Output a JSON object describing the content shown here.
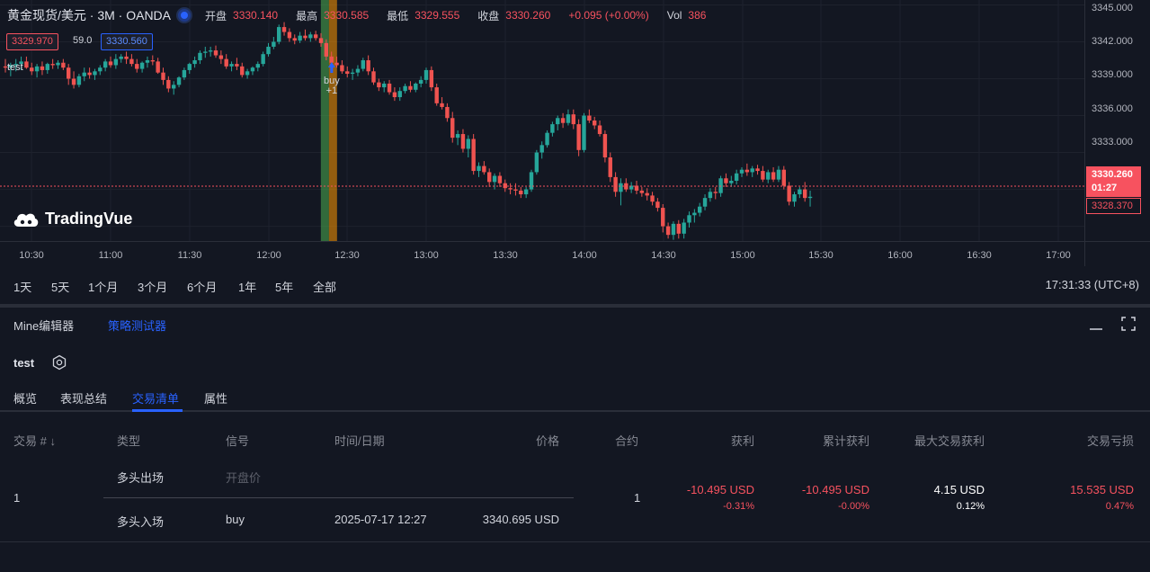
{
  "chart_header": {
    "symbol": "黄金现货/美元 · 3M · OANDA",
    "open_label": "开盘",
    "open": "3330.140",
    "high_label": "最高",
    "high": "3330.585",
    "low_label": "最低",
    "low": "3329.555",
    "close_label": "收盘",
    "close": "3330.260",
    "change": "+0.095 (+0.00%)",
    "vol_label": "Vol",
    "vol": "386"
  },
  "price_boxes": {
    "bid": "3329.970",
    "spread": "59.0",
    "ask": "3330.560"
  },
  "indicator_name": "test",
  "logo_text": "TradingVue",
  "y_axis": [
    "3345.000",
    "3342.000",
    "3339.000",
    "3336.000",
    "3333.000"
  ],
  "last_price": "3330.260",
  "countdown": "01:27",
  "low_marker": "3328.370",
  "x_axis": [
    "10:30",
    "11:00",
    "11:30",
    "12:00",
    "12:30",
    "13:00",
    "13:30",
    "14:00",
    "14:30",
    "15:00",
    "15:30",
    "16:00",
    "16:30",
    "17:00"
  ],
  "signal": {
    "label": "buy",
    "qty": "+1"
  },
  "colors": {
    "up": "#26a69a",
    "down": "#ef5350",
    "accent": "#2962ff",
    "highlight_green": "#4caf50",
    "highlight_orange": "#ff9800"
  },
  "ranges": [
    "1天",
    "5天",
    "1个月",
    "3个月",
    "6个月",
    "1年",
    "5年",
    "全部"
  ],
  "clock": "17:31:33 (UTC+8)",
  "panel_tabs": {
    "editor": "Mine编辑器",
    "tester": "策略测试器"
  },
  "strategy_name": "test",
  "sub_tabs": {
    "overview": "概览",
    "performance": "表现总结",
    "trades": "交易清单",
    "properties": "属性"
  },
  "table": {
    "headers": {
      "trade": "交易 # ↓",
      "type": "类型",
      "signal": "信号",
      "time": "时间/日期",
      "price": "价格",
      "contracts": "合约",
      "profit": "获利",
      "cum_profit": "累计获利",
      "max_runup": "最大交易获利",
      "drawdown": "交易亏损"
    },
    "row": {
      "num": "1",
      "exit_type": "多头出场",
      "exit_signal": "开盘价",
      "entry_type": "多头入场",
      "entry_signal": "buy",
      "entry_time": "2025-07-17 12:27",
      "entry_price": "3340.695 USD",
      "contracts": "1",
      "profit": "-10.495 USD",
      "profit_pct": "-0.31%",
      "cum_profit": "-10.495 USD",
      "cum_profit_pct": "-0.00%",
      "max_runup": "4.15 USD",
      "max_runup_pct": "0.12%",
      "drawdown": "15.535 USD",
      "drawdown_pct": "0.47%"
    }
  },
  "chart_data": {
    "type": "candlestick",
    "series": [
      {
        "name": "",
        "ohlc": [
          [
            3340.0,
            3340.6,
            3339.5,
            3339.9
          ],
          [
            3339.9,
            3340.3,
            3339.2,
            3340.1
          ],
          [
            3340.1,
            3340.6,
            3339.6,
            3340.2
          ],
          [
            3340.2,
            3340.8,
            3339.7,
            3340.4
          ],
          [
            3340.4,
            3340.8,
            3339.8,
            3339.9
          ],
          [
            3339.9,
            3340.3,
            3339.3,
            3339.6
          ],
          [
            3339.6,
            3340.2,
            3339.1,
            3340.0
          ],
          [
            3340.0,
            3340.4,
            3339.3,
            3339.7
          ],
          [
            3339.7,
            3340.3,
            3339.4,
            3340.2
          ],
          [
            3340.2,
            3340.6,
            3339.8,
            3340.1
          ],
          [
            3340.1,
            3340.5,
            3339.8,
            3340.3
          ],
          [
            3340.3,
            3340.6,
            3339.7,
            3339.9
          ],
          [
            3339.9,
            3340.2,
            3338.5,
            3339.0
          ],
          [
            3339.0,
            3339.6,
            3338.2,
            3338.5
          ],
          [
            3338.5,
            3339.4,
            3338.3,
            3339.2
          ],
          [
            3339.2,
            3339.9,
            3338.8,
            3339.5
          ],
          [
            3339.5,
            3339.9,
            3339.0,
            3339.3
          ],
          [
            3339.3,
            3339.8,
            3338.9,
            3339.6
          ],
          [
            3339.6,
            3340.1,
            3339.3,
            3339.9
          ],
          [
            3339.9,
            3340.6,
            3339.6,
            3340.4
          ],
          [
            3340.4,
            3340.8,
            3339.9,
            3340.1
          ],
          [
            3340.1,
            3341.0,
            3339.8,
            3340.6
          ],
          [
            3340.6,
            3341.0,
            3340.3,
            3340.8
          ],
          [
            3340.8,
            3341.2,
            3340.2,
            3340.6
          ],
          [
            3340.6,
            3341.0,
            3340.0,
            3340.2
          ],
          [
            3340.2,
            3340.6,
            3339.5,
            3339.8
          ],
          [
            3339.8,
            3340.4,
            3339.5,
            3340.3
          ],
          [
            3340.3,
            3340.8,
            3339.9,
            3340.5
          ],
          [
            3340.5,
            3340.9,
            3340.1,
            3340.4
          ],
          [
            3340.4,
            3340.7,
            3339.4,
            3339.5
          ],
          [
            3339.5,
            3339.9,
            3338.5,
            3338.9
          ],
          [
            3338.9,
            3339.2,
            3337.9,
            3338.2
          ],
          [
            3338.2,
            3338.8,
            3337.7,
            3338.5
          ],
          [
            3338.5,
            3339.2,
            3338.3,
            3339.1
          ],
          [
            3339.1,
            3339.9,
            3338.9,
            3339.7
          ],
          [
            3339.7,
            3340.3,
            3339.4,
            3340.2
          ],
          [
            3340.2,
            3340.8,
            3339.9,
            3340.5
          ],
          [
            3340.5,
            3341.3,
            3340.2,
            3341.1
          ],
          [
            3341.1,
            3341.6,
            3340.7,
            3341.2
          ],
          [
            3341.2,
            3341.6,
            3340.8,
            3341.3
          ],
          [
            3341.3,
            3341.7,
            3340.7,
            3340.9
          ],
          [
            3340.9,
            3341.3,
            3340.2,
            3340.6
          ],
          [
            3340.6,
            3341.0,
            3339.8,
            3340.0
          ],
          [
            3340.0,
            3340.4,
            3339.6,
            3340.2
          ],
          [
            3340.2,
            3340.7,
            3339.7,
            3340.0
          ],
          [
            3340.0,
            3340.3,
            3339.1,
            3339.3
          ],
          [
            3339.3,
            3339.8,
            3339.0,
            3339.6
          ],
          [
            3339.6,
            3340.0,
            3339.3,
            3339.9
          ],
          [
            3339.9,
            3340.4,
            3339.6,
            3340.2
          ],
          [
            3340.2,
            3341.2,
            3340.0,
            3341.0
          ],
          [
            3341.0,
            3341.9,
            3340.8,
            3341.6
          ],
          [
            3341.6,
            3342.4,
            3341.4,
            3342.0
          ],
          [
            3342.0,
            3343.4,
            3341.8,
            3343.2
          ],
          [
            3343.2,
            3343.6,
            3342.5,
            3342.8
          ],
          [
            3342.8,
            3343.1,
            3342.0,
            3342.3
          ],
          [
            3342.3,
            3342.6,
            3341.8,
            3342.1
          ],
          [
            3342.1,
            3342.8,
            3341.9,
            3342.5
          ],
          [
            3342.5,
            3343.0,
            3342.1,
            3342.3
          ],
          [
            3342.3,
            3342.8,
            3342.0,
            3342.6
          ],
          [
            3342.6,
            3342.9,
            3342.1,
            3342.3
          ],
          [
            3342.3,
            3342.7,
            3341.6,
            3341.9
          ],
          [
            3341.9,
            3342.2,
            3340.5,
            3340.8
          ],
          [
            3340.8,
            3341.2,
            3339.9,
            3340.3
          ],
          [
            3340.3,
            3340.8,
            3339.9,
            3340.1
          ],
          [
            3340.1,
            3340.5,
            3339.4,
            3339.6
          ],
          [
            3339.6,
            3340.0,
            3339.1,
            3339.4
          ],
          [
            3339.4,
            3339.8,
            3338.9,
            3339.5
          ],
          [
            3339.5,
            3340.1,
            3339.2,
            3339.8
          ],
          [
            3339.8,
            3340.7,
            3339.6,
            3340.5
          ],
          [
            3340.5,
            3340.9,
            3339.3,
            3339.6
          ],
          [
            3339.6,
            3339.9,
            3338.5,
            3338.7
          ],
          [
            3338.7,
            3339.0,
            3338.0,
            3338.3
          ],
          [
            3338.3,
            3338.8,
            3337.9,
            3338.6
          ],
          [
            3338.6,
            3338.9,
            3337.7,
            3337.9
          ],
          [
            3337.9,
            3338.3,
            3337.2,
            3337.5
          ],
          [
            3337.5,
            3338.3,
            3337.2,
            3338.0
          ],
          [
            3338.0,
            3338.6,
            3337.8,
            3338.4
          ],
          [
            3338.4,
            3338.8,
            3337.9,
            3338.1
          ],
          [
            3338.1,
            3338.7,
            3337.9,
            3338.6
          ],
          [
            3338.6,
            3339.2,
            3338.3,
            3338.9
          ],
          [
            3338.9,
            3339.9,
            3338.6,
            3339.7
          ],
          [
            3339.7,
            3340.0,
            3338.0,
            3338.3
          ],
          [
            3338.3,
            3338.6,
            3336.8,
            3337.0
          ],
          [
            3337.0,
            3337.5,
            3336.5,
            3336.7
          ],
          [
            3336.7,
            3337.0,
            3335.5,
            3335.8
          ],
          [
            3335.8,
            3336.3,
            3333.8,
            3334.2
          ],
          [
            3334.2,
            3334.8,
            3333.6,
            3334.5
          ],
          [
            3334.5,
            3334.9,
            3333.0,
            3333.3
          ],
          [
            3333.3,
            3334.4,
            3332.6,
            3334.1
          ],
          [
            3334.1,
            3334.5,
            3331.2,
            3331.5
          ],
          [
            3331.5,
            3332.2,
            3331.0,
            3331.9
          ],
          [
            3331.9,
            3332.3,
            3331.2,
            3331.4
          ],
          [
            3331.4,
            3331.7,
            3330.2,
            3330.6
          ],
          [
            3330.6,
            3331.3,
            3330.0,
            3331.1
          ],
          [
            3331.1,
            3331.4,
            3330.2,
            3330.5
          ],
          [
            3330.5,
            3330.8,
            3329.8,
            3330.1
          ],
          [
            3330.1,
            3330.5,
            3329.6,
            3330.0
          ],
          [
            3330.0,
            3330.5,
            3329.5,
            3329.9
          ],
          [
            3329.9,
            3330.2,
            3329.3,
            3329.6
          ],
          [
            3329.6,
            3330.2,
            3329.3,
            3330.0
          ],
          [
            3330.0,
            3331.6,
            3329.8,
            3331.4
          ],
          [
            3331.4,
            3333.2,
            3331.2,
            3333.0
          ],
          [
            3333.0,
            3333.9,
            3332.5,
            3333.6
          ],
          [
            3333.6,
            3334.8,
            3333.4,
            3334.6
          ],
          [
            3334.6,
            3335.5,
            3334.3,
            3335.3
          ],
          [
            3335.3,
            3336.0,
            3334.8,
            3335.8
          ],
          [
            3335.8,
            3336.2,
            3335.0,
            3335.4
          ],
          [
            3335.4,
            3336.5,
            3335.2,
            3336.1
          ],
          [
            3336.1,
            3336.5,
            3334.9,
            3335.3
          ],
          [
            3335.3,
            3335.7,
            3332.7,
            3333.2
          ],
          [
            3333.2,
            3336.2,
            3333.0,
            3336.0
          ],
          [
            3336.0,
            3336.5,
            3335.4,
            3335.6
          ],
          [
            3335.6,
            3335.9,
            3334.9,
            3335.2
          ],
          [
            3335.2,
            3335.6,
            3334.3,
            3334.5
          ],
          [
            3334.5,
            3334.8,
            3332.2,
            3332.6
          ],
          [
            3332.6,
            3333.0,
            3330.6,
            3331.0
          ],
          [
            3331.0,
            3331.4,
            3329.4,
            3329.8
          ],
          [
            3329.8,
            3330.9,
            3328.7,
            3330.5
          ],
          [
            3330.5,
            3330.9,
            3329.8,
            3330.0
          ],
          [
            3330.0,
            3330.6,
            3329.7,
            3330.3
          ],
          [
            3330.3,
            3330.7,
            3329.6,
            3329.9
          ],
          [
            3329.9,
            3330.2,
            3329.4,
            3329.7
          ],
          [
            3329.7,
            3330.1,
            3329.1,
            3329.5
          ],
          [
            3329.5,
            3329.8,
            3328.7,
            3329.0
          ],
          [
            3329.0,
            3329.3,
            3328.2,
            3328.5
          ],
          [
            3328.5,
            3328.8,
            3326.5,
            3327.0
          ],
          [
            3327.0,
            3327.3,
            3326.0,
            3326.3
          ],
          [
            3326.3,
            3327.4,
            3325.9,
            3327.2
          ],
          [
            3327.2,
            3327.5,
            3326.0,
            3326.4
          ],
          [
            3326.4,
            3327.6,
            3326.0,
            3327.3
          ],
          [
            3327.3,
            3328.2,
            3326.9,
            3327.9
          ],
          [
            3327.9,
            3328.4,
            3327.3,
            3328.1
          ],
          [
            3328.1,
            3328.9,
            3327.8,
            3328.6
          ],
          [
            3328.6,
            3329.6,
            3328.3,
            3329.3
          ],
          [
            3329.3,
            3330.1,
            3329.0,
            3329.8
          ],
          [
            3329.8,
            3330.2,
            3329.2,
            3329.7
          ],
          [
            3329.7,
            3331.1,
            3329.4,
            3330.9
          ],
          [
            3330.9,
            3331.3,
            3330.2,
            3330.5
          ],
          [
            3330.5,
            3331.1,
            3330.2,
            3330.7
          ],
          [
            3330.7,
            3331.6,
            3330.4,
            3331.3
          ],
          [
            3331.3,
            3331.8,
            3331.0,
            3331.6
          ],
          [
            3331.6,
            3332.1,
            3331.1,
            3331.4
          ],
          [
            3331.4,
            3331.9,
            3331.0,
            3331.7
          ],
          [
            3331.7,
            3332.0,
            3331.2,
            3331.5
          ],
          [
            3331.5,
            3331.9,
            3330.6,
            3330.8
          ],
          [
            3330.8,
            3331.6,
            3330.5,
            3331.4
          ],
          [
            3331.4,
            3331.8,
            3330.6,
            3330.8
          ],
          [
            3330.8,
            3331.9,
            3330.6,
            3331.6
          ],
          [
            3331.6,
            3331.9,
            3330.0,
            3330.3
          ],
          [
            3330.3,
            3330.6,
            3328.7,
            3329.0
          ],
          [
            3329.0,
            3329.8,
            3328.6,
            3329.6
          ],
          [
            3329.6,
            3330.2,
            3329.3,
            3330.0
          ],
          [
            3330.0,
            3330.6,
            3329.0,
            3329.3
          ],
          [
            3329.3,
            3329.9,
            3328.6,
            3329.4
          ]
        ]
      }
    ],
    "x_ticks": [
      "10:30",
      "11:00",
      "11:30",
      "12:00",
      "12:30",
      "13:00",
      "13:30",
      "14:00",
      "14:30",
      "15:00",
      "15:30",
      "16:00",
      "16:30",
      "17:00"
    ],
    "ylabel": "",
    "ylim": [
      3325.8,
      3345.4
    ],
    "grid": true,
    "current_price": 3330.26,
    "signal_bar": 61
  }
}
